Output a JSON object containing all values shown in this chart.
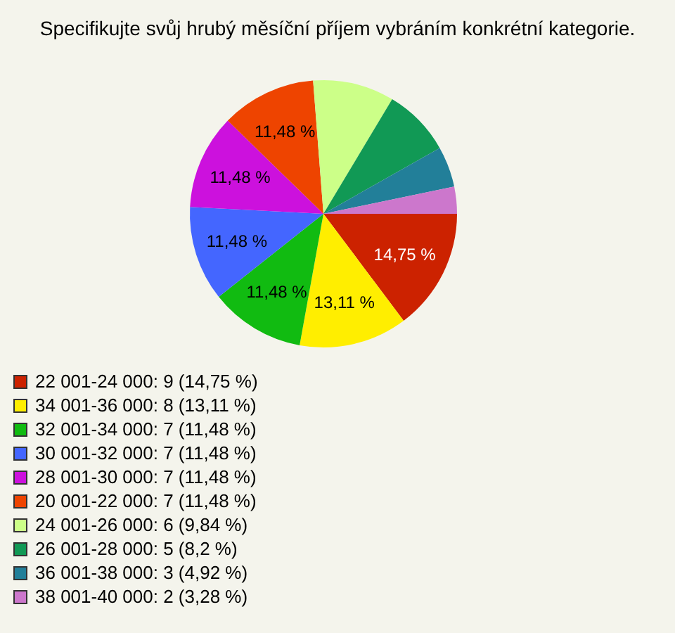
{
  "chart_data": {
    "type": "pie",
    "title": "Specifikujte svůj hrubý měsíční příjem vybráním konkrétní kategorie.",
    "categories": [
      "22 001-24 000: 9 (14,75 %)",
      "34 001-36 000: 8 (13,11 %)",
      "32 001-34 000: 7 (11,48 %)",
      "30 001-32 000: 7 (11,48 %)",
      "28 001-30 000: 7 (11,48 %)",
      "20 001-22 000: 7 (11,48 %)",
      "24 001-26 000: 6 (9,84 %)",
      "26 001-28 000: 5 (8,2 %)",
      "36 001-38 000: 3 (4,92 %)",
      "38 001-40 000: 2 (3,28 %)"
    ],
    "values": [
      14.75,
      13.11,
      11.48,
      11.48,
      11.48,
      11.48,
      9.84,
      8.2,
      4.92,
      3.28
    ],
    "colors": [
      "#cc2200",
      "#ffee00",
      "#11bb11",
      "#4466ff",
      "#cc11dd",
      "#ee4400",
      "#ccff88",
      "#119955",
      "#227f99",
      "#cc77cc"
    ],
    "value_labels": [
      "14,75 %",
      "13,11 %",
      "11,48 %",
      "11,48 %",
      "11,48 %",
      "11,48 %",
      null,
      null,
      null,
      null
    ],
    "legend": "bottom left"
  }
}
